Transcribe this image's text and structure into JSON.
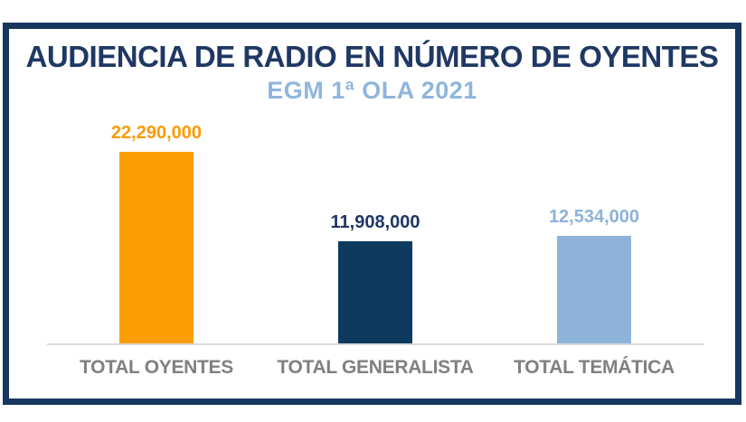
{
  "frame": {
    "border_color": "#17375E",
    "background": "#FFFFFF"
  },
  "header": {
    "title": "AUDIENCIA DE RADIO EN NÚMERO DE OYENTES",
    "subtitle": "EGM 1ª OLA 2021",
    "title_color": "#1F3864",
    "subtitle_color": "#8FB6DC"
  },
  "chart_data": {
    "type": "bar",
    "title": "AUDIENCIA DE RADIO EN NÚMERO DE OYENTES",
    "subtitle": "EGM 1ª OLA 2021",
    "categories": [
      "TOTAL OYENTES",
      "TOTAL GENERALISTA",
      "TOTAL TEMÁTICA"
    ],
    "values": [
      22290000,
      11908000,
      12534000
    ],
    "value_labels": [
      "22,290,000",
      "11,908,000",
      "12,534,000"
    ],
    "bar_colors": [
      "#FC9D03",
      "#0E3A5F",
      "#8DB3D8"
    ],
    "value_label_colors": [
      "#F99B04",
      "#1F3864",
      "#8DB3D8"
    ],
    "category_label_color": "#808080",
    "axis_line_color": "#D9D9D9",
    "xlabel": "",
    "ylabel": "",
    "ylim": [
      0,
      22290000
    ],
    "grid": false,
    "legend": false
  }
}
